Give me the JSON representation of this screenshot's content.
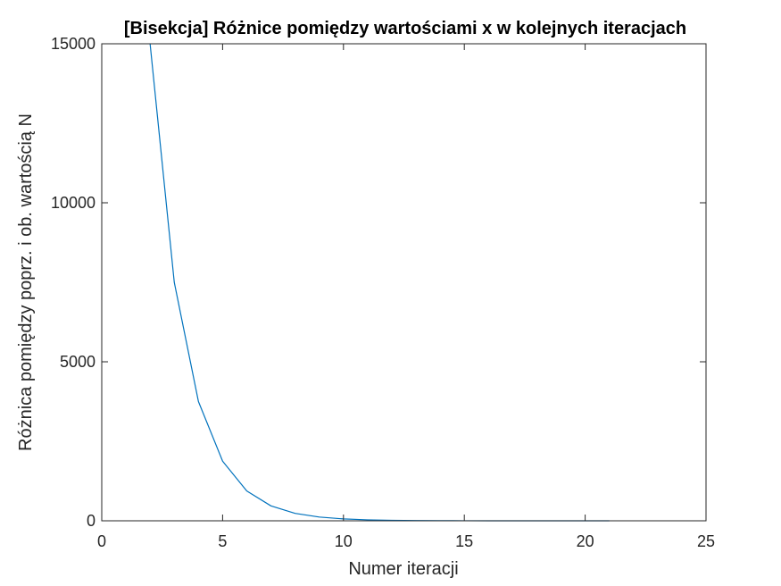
{
  "chart_data": {
    "type": "line",
    "title": "[Bisekcja] Różnice pomiędzy wartościami x w kolejnych iteracjach",
    "xlabel": "Numer iteracji",
    "ylabel": "Różnica pomiędzy poprz. i ob. wartością N",
    "xlim": [
      0,
      25
    ],
    "ylim": [
      0,
      15000
    ],
    "xticks": [
      "0",
      "5",
      "10",
      "15",
      "20",
      "25"
    ],
    "yticks": [
      "0",
      "5000",
      "10000",
      "15000"
    ],
    "grid": false,
    "legend": "none",
    "series": [
      {
        "color": "#0072BD",
        "x": [
          2,
          3,
          4,
          5,
          6,
          7,
          8,
          9,
          10,
          11,
          12,
          13,
          14,
          15,
          16,
          17,
          18,
          19,
          20,
          21
        ],
        "y": [
          15000,
          7500,
          3750,
          1875,
          937.5,
          468.75,
          234.38,
          117.19,
          58.59,
          29.3,
          14.65,
          7.32,
          3.66,
          1.83,
          0.92,
          0.46,
          0.23,
          0.11,
          0.06,
          0.03
        ]
      }
    ]
  }
}
